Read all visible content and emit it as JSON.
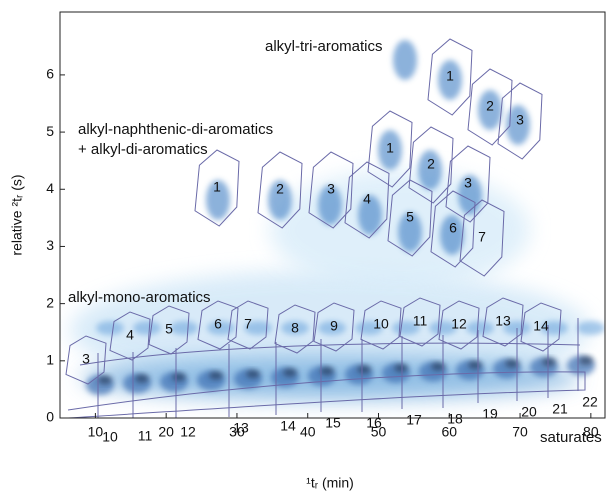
{
  "chart_data": {
    "type": "contour",
    "x_label": "¹tᵣ (min)",
    "y_label": "relative ²tᵣ (s)",
    "xlim": [
      5,
      82
    ],
    "ylim": [
      0,
      7.1
    ],
    "xticks": [
      10,
      20,
      30,
      40,
      50,
      60,
      70,
      80
    ],
    "yticks": [
      0,
      1,
      2,
      3,
      4,
      5,
      6
    ],
    "groups": [
      {
        "name": "alkyl-tri-aromatics",
        "labels": [
          "1",
          "2",
          "3"
        ]
      },
      {
        "name": "alkyl-naphthenic-di-aromatics",
        "name2": "+ alkyl-di-aromatics",
        "labels": [
          "1",
          "2",
          "3",
          "4",
          "5",
          "6",
          "7",
          "1",
          "2",
          "3"
        ]
      },
      {
        "name": "alkyl-mono-aromatics",
        "labels": [
          "3",
          "4",
          "5",
          "6",
          "7",
          "8",
          "9",
          "10",
          "11",
          "12",
          "13",
          "14"
        ]
      },
      {
        "name": "saturates",
        "labels": [
          "10",
          "11",
          "12",
          "13",
          "14",
          "15",
          "16",
          "17",
          "18",
          "19",
          "20",
          "21",
          "22"
        ]
      }
    ]
  }
}
